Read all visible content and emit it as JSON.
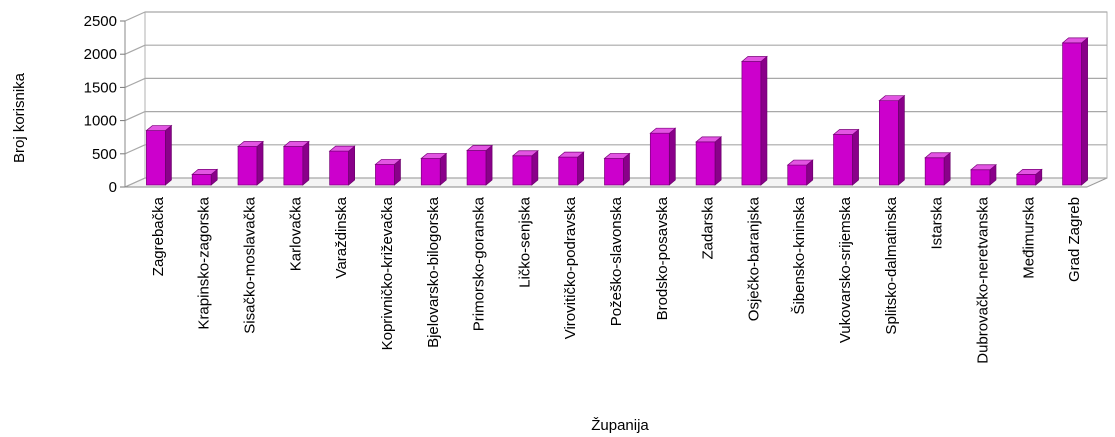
{
  "chart_data": {
    "type": "bar",
    "title": "",
    "xlabel": "Županija",
    "ylabel": "Broj korisnika",
    "ylim": [
      0,
      2500
    ],
    "yticks": [
      "0",
      "500",
      "1000",
      "1500",
      "2000",
      "2500"
    ],
    "grid": true,
    "three_d": true,
    "bar_color": "#cc00cc",
    "categories": [
      "Zagrebačka",
      "Krapinsko-zagorska",
      "Sisačko-moslavačka",
      "Karlovačka",
      "Varaždinska",
      "Koprivničko-križevačka",
      "Bjelovarsko-bilogorska",
      "Primorsko-goranska",
      "Ličko-senjska",
      "Virovitičko-podravska",
      "Požeško-slavonska",
      "Brodsko-posavska",
      "Zadarska",
      "Osječko-baranjska",
      "Šibensko-kninska",
      "Vukovarsko-srijemska",
      "Splitsko-dalmatinska",
      "Istarska",
      "Dubrovačko-neretvanska",
      "Međimurska",
      "Grad Zagreb"
    ],
    "values": [
      820,
      160,
      580,
      580,
      510,
      310,
      400,
      520,
      440,
      420,
      400,
      780,
      650,
      1860,
      300,
      760,
      1270,
      410,
      230,
      160,
      2140
    ]
  }
}
